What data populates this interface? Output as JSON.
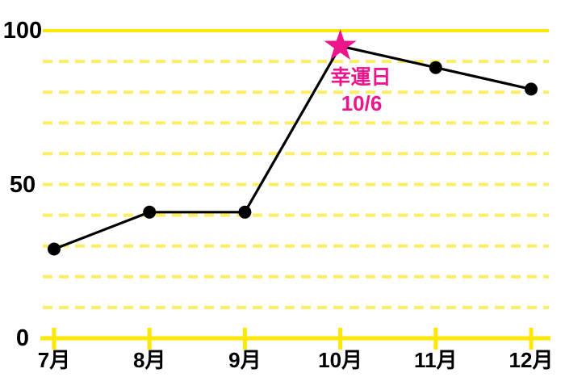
{
  "chart_data": {
    "type": "line",
    "title": "",
    "categories": [
      "7月",
      "8月",
      "9月",
      "10月",
      "11月",
      "12月"
    ],
    "values": [
      29,
      41,
      41,
      95,
      88,
      81
    ],
    "xlabel": "",
    "ylabel": "",
    "ylim": [
      0,
      100
    ],
    "yticks": [
      {
        "label": "0",
        "value": 0
      },
      {
        "label": "50",
        "value": 50
      },
      {
        "label": "100",
        "value": 100
      }
    ],
    "grid": {
      "horizontal_dashed_step": 10,
      "top_line_solid_at": 100,
      "style": "yellow dashed horizontal gridlines, solid yellow top line and x-axis"
    },
    "legend": "none",
    "annotation": {
      "category_index": 3,
      "marker_shape": "star",
      "label": "幸運日",
      "date": "10/6"
    }
  },
  "colors": {
    "background": "#ffffff",
    "grid_solid": "#ffe800",
    "grid_dashed": "#fdee63",
    "data_line": "#000000",
    "data_point": "#000000",
    "star": "#ec158c",
    "annotation_text": "#ec158c",
    "axis_label": "#000000"
  }
}
